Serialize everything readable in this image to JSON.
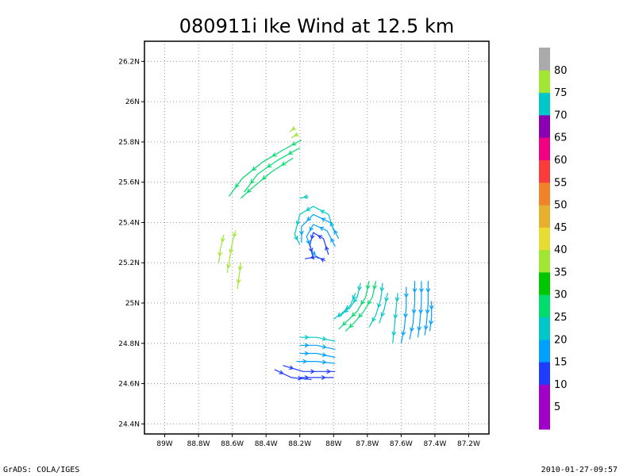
{
  "footer": {
    "left": "GrADS: COLA/IGES",
    "right": "2010-01-27-09:57"
  },
  "chart_data": {
    "type": "streamline",
    "title": "080911i Ike Wind at 12.5 km",
    "xlabel": "",
    "ylabel": "",
    "xlim": [
      -89.12,
      -87.08
    ],
    "ylim": [
      24.35,
      26.3
    ],
    "grid": true,
    "x_ticks": [
      -89.0,
      -88.8,
      -88.6,
      -88.4,
      -88.2,
      -88.0,
      -87.8,
      -87.6,
      -87.4,
      -87.2
    ],
    "x_tick_labels": [
      "89W",
      "88.8W",
      "88.6W",
      "88.4W",
      "88.2W",
      "88W",
      "87.8W",
      "87.6W",
      "87.4W",
      "87.2W"
    ],
    "y_ticks": [
      24.4,
      24.6,
      24.8,
      25.0,
      25.2,
      25.4,
      25.6,
      25.8,
      26.0,
      26.2
    ],
    "y_tick_labels": [
      "24.4N",
      "24.6N",
      "24.8N",
      "25N",
      "25.2N",
      "25.4N",
      "25.6N",
      "25.8N",
      "26N",
      "26.2N"
    ],
    "colorbar": {
      "labels": [
        "5",
        "10",
        "15",
        "20",
        "25",
        "30",
        "35",
        "40",
        "45",
        "50",
        "55",
        "60",
        "65",
        "70",
        "75",
        "80"
      ],
      "colors": [
        "#a000c8",
        "#a000c8",
        "#1e3cff",
        "#00a0ff",
        "#00c8c8",
        "#00dc6e",
        "#00c800",
        "#a0e632",
        "#e6dc32",
        "#e6af2d",
        "#f08228",
        "#fa3c3c",
        "#f00082",
        "#8c00b4",
        "#00c8c8",
        "#a0e632",
        "#aaaaaa"
      ]
    },
    "streamlines": [
      {
        "color": "#a0e632",
        "points": [
          [
            -88.65,
            25.34
          ],
          [
            -88.67,
            25.27
          ],
          [
            -88.68,
            25.2
          ]
        ]
      },
      {
        "color": "#a0e632",
        "points": [
          [
            -88.58,
            25.36
          ],
          [
            -88.6,
            25.3
          ],
          [
            -88.62,
            25.2
          ],
          [
            -88.63,
            25.15
          ]
        ]
      },
      {
        "color": "#a0e632",
        "points": [
          [
            -88.55,
            25.2
          ],
          [
            -88.56,
            25.13
          ],
          [
            -88.57,
            25.07
          ]
        ]
      },
      {
        "color": "#a0e632",
        "points": [
          [
            -88.23,
            25.87
          ],
          [
            -88.26,
            25.85
          ]
        ]
      },
      {
        "color": "#a0e632",
        "points": [
          [
            -88.21,
            25.84
          ],
          [
            -88.25,
            25.82
          ]
        ]
      },
      {
        "color": "#00dc6e",
        "points": [
          [
            -88.19,
            25.81
          ],
          [
            -88.3,
            25.76
          ],
          [
            -88.42,
            25.7
          ],
          [
            -88.54,
            25.62
          ],
          [
            -88.62,
            25.53
          ]
        ]
      },
      {
        "color": "#00dc6e",
        "points": [
          [
            -88.2,
            25.77
          ],
          [
            -88.33,
            25.71
          ],
          [
            -88.45,
            25.64
          ],
          [
            -88.53,
            25.55
          ]
        ]
      },
      {
        "color": "#00dc6e",
        "points": [
          [
            -88.24,
            25.72
          ],
          [
            -88.37,
            25.65
          ],
          [
            -88.47,
            25.58
          ],
          [
            -88.55,
            25.52
          ]
        ]
      },
      {
        "color": "#00c8c8",
        "points": [
          [
            -88.15,
            25.53
          ],
          [
            -88.2,
            25.52
          ]
        ]
      },
      {
        "color": "#00c8c8",
        "points": [
          [
            -88.0,
            25.36
          ],
          [
            -88.03,
            25.44
          ],
          [
            -88.12,
            25.48
          ],
          [
            -88.2,
            25.44
          ],
          [
            -88.23,
            25.34
          ],
          [
            -88.2,
            25.29
          ]
        ]
      },
      {
        "color": "#00a0ff",
        "points": [
          [
            -87.97,
            25.32
          ],
          [
            -88.02,
            25.4
          ],
          [
            -88.12,
            25.44
          ],
          [
            -88.19,
            25.38
          ],
          [
            -88.19,
            25.3
          ]
        ]
      },
      {
        "color": "#00a0ff",
        "points": [
          [
            -87.99,
            25.28
          ],
          [
            -88.04,
            25.36
          ],
          [
            -88.12,
            25.39
          ],
          [
            -88.16,
            25.33
          ],
          [
            -88.13,
            25.26
          ],
          [
            -88.09,
            25.22
          ]
        ]
      },
      {
        "color": "#1e3cff",
        "points": [
          [
            -88.03,
            25.24
          ],
          [
            -88.06,
            25.32
          ],
          [
            -88.12,
            25.35
          ],
          [
            -88.14,
            25.29
          ],
          [
            -88.12,
            25.22
          ]
        ]
      },
      {
        "color": "#1e3cff",
        "points": [
          [
            -88.05,
            25.21
          ],
          [
            -88.1,
            25.23
          ],
          [
            -88.17,
            25.22
          ]
        ]
      },
      {
        "color": "#00dc6e",
        "points": [
          [
            -87.75,
            25.11
          ],
          [
            -87.77,
            25.03
          ],
          [
            -87.82,
            24.96
          ],
          [
            -87.88,
            24.9
          ],
          [
            -87.93,
            24.86
          ]
        ]
      },
      {
        "color": "#00dc6e",
        "points": [
          [
            -87.79,
            25.11
          ],
          [
            -87.81,
            25.03
          ],
          [
            -87.86,
            24.96
          ],
          [
            -87.92,
            24.91
          ],
          [
            -87.97,
            24.87
          ]
        ]
      },
      {
        "color": "#00c8c8",
        "points": [
          [
            -87.84,
            25.1
          ],
          [
            -87.86,
            25.03
          ],
          [
            -87.9,
            24.98
          ],
          [
            -87.97,
            24.93
          ]
        ]
      },
      {
        "color": "#00c8c8",
        "points": [
          [
            -87.87,
            25.05
          ],
          [
            -87.9,
            24.99
          ],
          [
            -87.95,
            24.95
          ],
          [
            -88.0,
            24.92
          ]
        ]
      },
      {
        "color": "#00c8c8",
        "points": [
          [
            -87.71,
            25.1
          ],
          [
            -87.72,
            25.02
          ],
          [
            -87.75,
            24.94
          ],
          [
            -87.79,
            24.88
          ]
        ]
      },
      {
        "color": "#00c8c8",
        "points": [
          [
            -87.68,
            25.05
          ],
          [
            -87.7,
            24.97
          ],
          [
            -87.73,
            24.9
          ]
        ]
      },
      {
        "color": "#00c8c8",
        "points": [
          [
            -87.62,
            25.05
          ],
          [
            -87.63,
            24.97
          ],
          [
            -87.64,
            24.88
          ],
          [
            -87.65,
            24.8
          ]
        ]
      },
      {
        "color": "#00a0ff",
        "points": [
          [
            -87.57,
            25.08
          ],
          [
            -87.57,
            24.98
          ],
          [
            -87.58,
            24.88
          ],
          [
            -87.6,
            24.8
          ]
        ]
      },
      {
        "color": "#00a0ff",
        "points": [
          [
            -87.52,
            25.11
          ],
          [
            -87.52,
            25.0
          ],
          [
            -87.53,
            24.9
          ],
          [
            -87.55,
            24.82
          ]
        ]
      },
      {
        "color": "#00a0ff",
        "points": [
          [
            -87.48,
            25.11
          ],
          [
            -87.48,
            25.0
          ],
          [
            -87.49,
            24.9
          ],
          [
            -87.5,
            24.83
          ]
        ]
      },
      {
        "color": "#00a0ff",
        "points": [
          [
            -87.44,
            25.11
          ],
          [
            -87.44,
            25.0
          ],
          [
            -87.45,
            24.9
          ],
          [
            -87.46,
            24.84
          ]
        ]
      },
      {
        "color": "#00a0ff",
        "points": [
          [
            -87.42,
            25.01
          ],
          [
            -87.42,
            24.93
          ],
          [
            -87.43,
            24.86
          ]
        ]
      },
      {
        "color": "#00c8c8",
        "points": [
          [
            -88.2,
            24.83
          ],
          [
            -88.1,
            24.83
          ],
          [
            -87.99,
            24.81
          ]
        ]
      },
      {
        "color": "#00a0ff",
        "points": [
          [
            -88.2,
            24.79
          ],
          [
            -88.1,
            24.79
          ],
          [
            -87.99,
            24.77
          ]
        ]
      },
      {
        "color": "#00a0ff",
        "points": [
          [
            -88.2,
            24.75
          ],
          [
            -88.1,
            24.75
          ],
          [
            -87.99,
            24.73
          ]
        ]
      },
      {
        "color": "#00a0ff",
        "points": [
          [
            -88.22,
            24.71
          ],
          [
            -88.1,
            24.71
          ],
          [
            -87.99,
            24.7
          ]
        ]
      },
      {
        "color": "#1e3cff",
        "points": [
          [
            -88.3,
            24.69
          ],
          [
            -88.18,
            24.66
          ],
          [
            -88.05,
            24.66
          ],
          [
            -87.99,
            24.66
          ]
        ]
      },
      {
        "color": "#1e3cff",
        "points": [
          [
            -88.35,
            24.67
          ],
          [
            -88.25,
            24.63
          ],
          [
            -88.13,
            24.62
          ]
        ]
      },
      {
        "color": "#1e3cff",
        "points": [
          [
            -88.2,
            24.63
          ],
          [
            -88.1,
            24.63
          ],
          [
            -88.0,
            24.63
          ]
        ]
      }
    ]
  }
}
